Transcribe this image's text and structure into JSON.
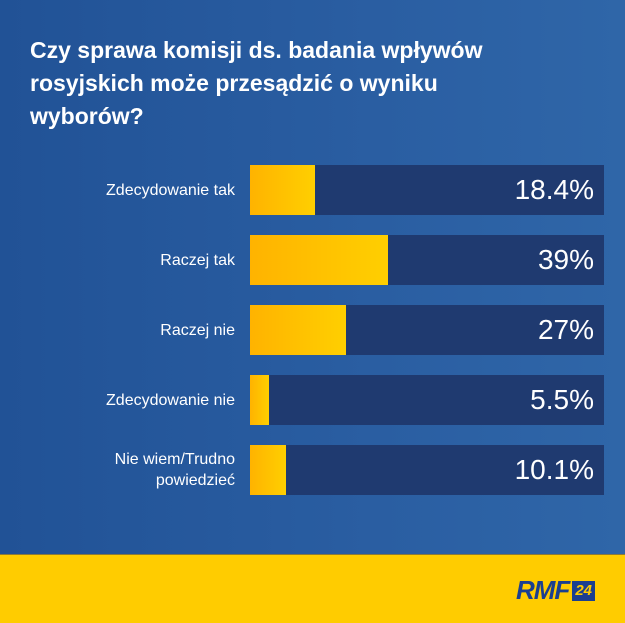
{
  "title": "Czy sprawa komisji ds. badania wpływów rosyjskich może przesądzić o wyniku wyborów?",
  "rows": [
    {
      "label": "Zdecydowanie tak",
      "value": "18.4%",
      "pct": 18.4
    },
    {
      "label": "Raczej tak",
      "value": "39%",
      "pct": 39
    },
    {
      "label": "Raczej nie",
      "value": "27%",
      "pct": 27
    },
    {
      "label": "Zdecydowanie nie",
      "value": "5.5%",
      "pct": 5.5
    },
    {
      "label": "Nie wiem/Trudno powiedzieć",
      "value": "10.1%",
      "pct": 10.1
    }
  ],
  "footer": {
    "brand_text": "RMF",
    "brand_box": "24"
  },
  "colors": {
    "background": "#2a5ea2",
    "track": "#1f3a70",
    "bar": "#ffc300",
    "footer": "#ffcc00",
    "brand": "#1b3f8f"
  },
  "chart_data": {
    "type": "bar",
    "orientation": "horizontal",
    "title": "Czy sprawa komisji ds. badania wpływów rosyjskich może przesądzić o wyniku wyborów?",
    "categories": [
      "Zdecydowanie tak",
      "Raczej tak",
      "Raczej nie",
      "Zdecydowanie nie",
      "Nie wiem/Trudno powiedzieć"
    ],
    "values": [
      18.4,
      39,
      27,
      5.5,
      10.1
    ],
    "value_labels": [
      "18.4%",
      "39%",
      "27%",
      "5.5%",
      "10.1%"
    ],
    "xlabel": "",
    "ylabel": "",
    "xlim": [
      0,
      100
    ],
    "grid": false,
    "legend": null
  }
}
